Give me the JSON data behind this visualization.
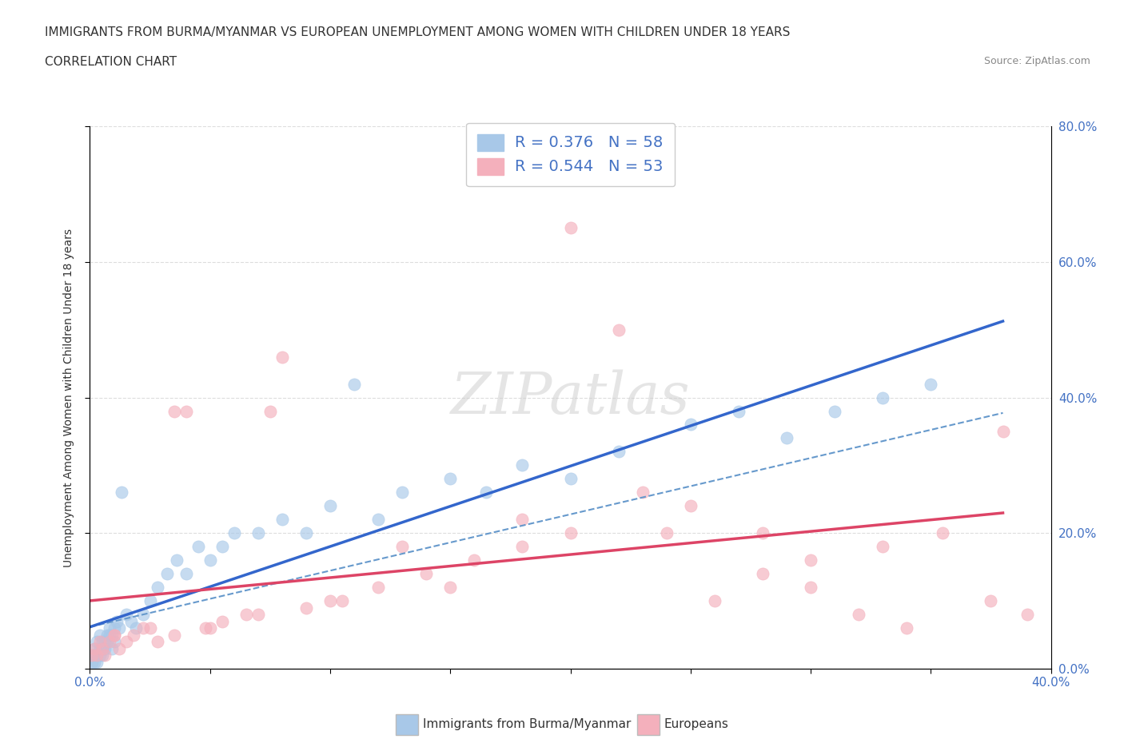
{
  "title_line1": "IMMIGRANTS FROM BURMA/MYANMAR VS EUROPEAN UNEMPLOYMENT AMONG WOMEN WITH CHILDREN UNDER 18 YEARS",
  "title_line2": "CORRELATION CHART",
  "source_text": "Source: ZipAtlas.com",
  "ylabel": "Unemployment Among Women with Children Under 18 years",
  "legend1_label": "R = 0.376   N = 58",
  "legend2_label": "R = 0.544   N = 53",
  "legend_bottom1": "Immigrants from Burma/Myanmar",
  "legend_bottom2": "Europeans",
  "blue_color": "#A8C8E8",
  "pink_color": "#F4B0BC",
  "blue_line_color": "#3366CC",
  "pink_line_color": "#DD4466",
  "blue_dash_color": "#6699CC",
  "R1": 0.376,
  "N1": 58,
  "R2": 0.544,
  "N2": 53,
  "xlim": [
    0.0,
    0.4
  ],
  "ylim": [
    0.0,
    0.8
  ],
  "watermark": "ZIPatlas",
  "bg_color": "#FFFFFF",
  "grid_color": "#DDDDDD",
  "blue_x": [
    0.001,
    0.001,
    0.002,
    0.002,
    0.002,
    0.003,
    0.003,
    0.003,
    0.004,
    0.004,
    0.004,
    0.005,
    0.005,
    0.005,
    0.006,
    0.006,
    0.007,
    0.007,
    0.008,
    0.008,
    0.009,
    0.009,
    0.01,
    0.01,
    0.011,
    0.012,
    0.013,
    0.015,
    0.017,
    0.019,
    0.022,
    0.025,
    0.028,
    0.032,
    0.036,
    0.04,
    0.045,
    0.05,
    0.055,
    0.06,
    0.07,
    0.08,
    0.09,
    0.1,
    0.11,
    0.12,
    0.13,
    0.15,
    0.165,
    0.18,
    0.2,
    0.22,
    0.25,
    0.27,
    0.29,
    0.31,
    0.33,
    0.35
  ],
  "blue_y": [
    0.01,
    0.02,
    0.01,
    0.03,
    0.02,
    0.02,
    0.04,
    0.01,
    0.03,
    0.02,
    0.05,
    0.03,
    0.04,
    0.02,
    0.04,
    0.03,
    0.05,
    0.04,
    0.06,
    0.05,
    0.05,
    0.03,
    0.06,
    0.04,
    0.07,
    0.06,
    0.26,
    0.08,
    0.07,
    0.06,
    0.08,
    0.1,
    0.12,
    0.14,
    0.16,
    0.14,
    0.18,
    0.16,
    0.18,
    0.2,
    0.2,
    0.22,
    0.2,
    0.24,
    0.42,
    0.22,
    0.26,
    0.28,
    0.26,
    0.3,
    0.28,
    0.32,
    0.36,
    0.38,
    0.34,
    0.38,
    0.4,
    0.42
  ],
  "pink_x": [
    0.001,
    0.002,
    0.003,
    0.004,
    0.005,
    0.006,
    0.008,
    0.01,
    0.012,
    0.015,
    0.018,
    0.022,
    0.028,
    0.035,
    0.04,
    0.048,
    0.055,
    0.065,
    0.075,
    0.09,
    0.105,
    0.12,
    0.14,
    0.16,
    0.18,
    0.2,
    0.22,
    0.24,
    0.26,
    0.28,
    0.3,
    0.32,
    0.34,
    0.355,
    0.375,
    0.39,
    0.01,
    0.025,
    0.05,
    0.07,
    0.1,
    0.15,
    0.2,
    0.25,
    0.3,
    0.035,
    0.08,
    0.13,
    0.18,
    0.23,
    0.28,
    0.33,
    0.38
  ],
  "pink_y": [
    0.02,
    0.03,
    0.02,
    0.04,
    0.03,
    0.02,
    0.04,
    0.05,
    0.03,
    0.04,
    0.05,
    0.06,
    0.04,
    0.05,
    0.38,
    0.06,
    0.07,
    0.08,
    0.38,
    0.09,
    0.1,
    0.12,
    0.14,
    0.16,
    0.18,
    0.65,
    0.5,
    0.2,
    0.1,
    0.14,
    0.12,
    0.08,
    0.06,
    0.2,
    0.1,
    0.08,
    0.05,
    0.06,
    0.06,
    0.08,
    0.1,
    0.12,
    0.2,
    0.24,
    0.16,
    0.38,
    0.46,
    0.18,
    0.22,
    0.26,
    0.2,
    0.18,
    0.35
  ]
}
